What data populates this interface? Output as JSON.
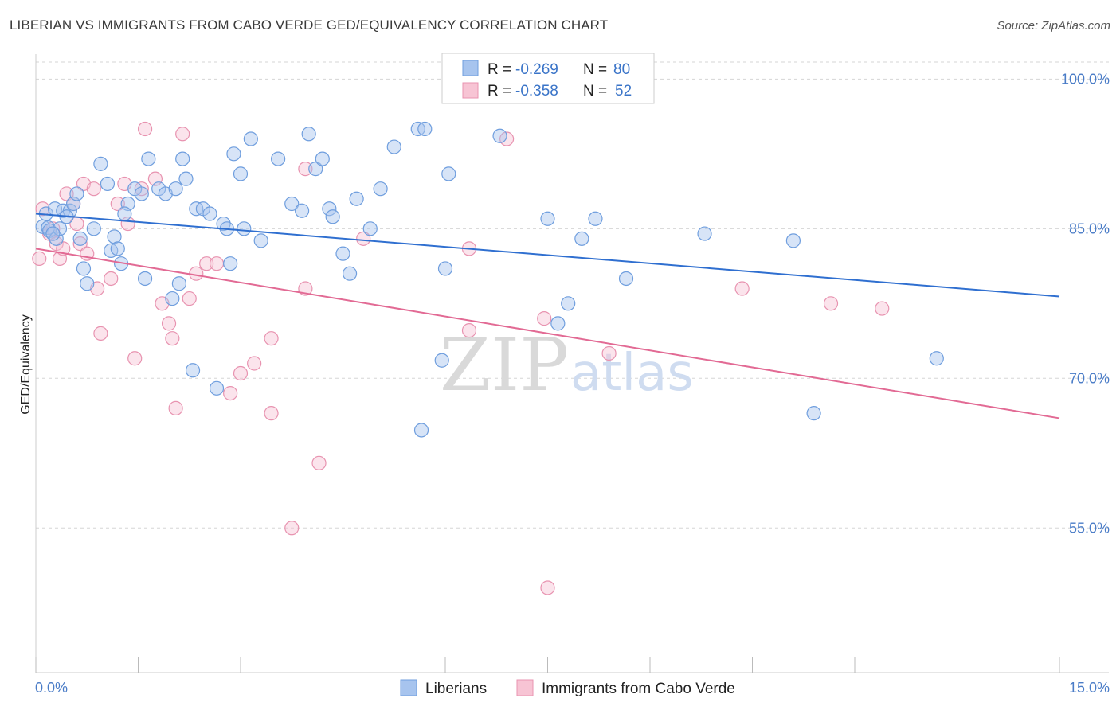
{
  "title": "LIBERIAN VS IMMIGRANTS FROM CABO VERDE GED/EQUIVALENCY CORRELATION CHART",
  "source": "Source: ZipAtlas.com",
  "watermark": {
    "zip": "ZIP",
    "atlas": "atlas"
  },
  "legend_box": {
    "r_label": "R =",
    "n_label": "N =",
    "rows": [
      {
        "r": "-0.269",
        "n": "80",
        "color": "#a7c4ee",
        "stroke": "#6f9ede"
      },
      {
        "r": "-0.358",
        "n": "52",
        "color": "#f7c4d4",
        "stroke": "#e893b0"
      }
    ]
  },
  "colors": {
    "liberians_fill": "#a7c4ee",
    "liberians_stroke": "#6f9ede",
    "liberians_line": "#2f6fd0",
    "cabo_fill": "#f7c4d4",
    "cabo_stroke": "#e893b0",
    "cabo_line": "#e26a94"
  },
  "chart_data": {
    "type": "scatter",
    "title": "LIBERIAN VS IMMIGRANTS FROM CABO VERDE GED/EQUIVALENCY CORRELATION CHART",
    "xlabel": "",
    "ylabel": "GED/Equivalency",
    "xlim": [
      0,
      15
    ],
    "ylim": [
      40.5,
      102.5
    ],
    "x_tick_labels": [
      "0.0%",
      "15.0%"
    ],
    "y_ticks": [
      55,
      70,
      85,
      100
    ],
    "y_tick_labels": [
      "55.0%",
      "70.0%",
      "85.0%",
      "100.0%"
    ],
    "grid": true,
    "legend_placement": "bottom",
    "series": [
      {
        "name": "Liberians",
        "r": -0.269,
        "n": 80,
        "trend": {
          "x": [
            0,
            15
          ],
          "y": [
            86.5,
            78.2
          ]
        },
        "points": [
          [
            0.1,
            85.2
          ],
          [
            0.15,
            86.5
          ],
          [
            0.18,
            85.1
          ],
          [
            0.2,
            84.8
          ],
          [
            0.28,
            87.0
          ],
          [
            0.3,
            84.0
          ],
          [
            0.35,
            85.0
          ],
          [
            0.4,
            86.8
          ],
          [
            0.5,
            86.8
          ],
          [
            0.55,
            87.5
          ],
          [
            0.6,
            88.5
          ],
          [
            0.65,
            84.0
          ],
          [
            0.7,
            81.0
          ],
          [
            0.75,
            79.5
          ],
          [
            0.85,
            85.0
          ],
          [
            0.95,
            91.5
          ],
          [
            1.05,
            89.5
          ],
          [
            1.1,
            82.8
          ],
          [
            1.15,
            84.2
          ],
          [
            1.2,
            83.0
          ],
          [
            1.25,
            81.5
          ],
          [
            1.35,
            87.5
          ],
          [
            1.45,
            89.0
          ],
          [
            1.55,
            88.5
          ],
          [
            1.6,
            80.0
          ],
          [
            1.65,
            92.0
          ],
          [
            1.8,
            89.0
          ],
          [
            1.9,
            88.5
          ],
          [
            2.0,
            78.0
          ],
          [
            2.1,
            79.5
          ],
          [
            2.05,
            89.0
          ],
          [
            2.15,
            92.0
          ],
          [
            2.2,
            90.0
          ],
          [
            2.3,
            70.8
          ],
          [
            2.35,
            87.0
          ],
          [
            2.45,
            87.0
          ],
          [
            2.55,
            86.5
          ],
          [
            2.65,
            69.0
          ],
          [
            2.75,
            85.5
          ],
          [
            2.85,
            81.5
          ],
          [
            2.9,
            92.5
          ],
          [
            3.05,
            85.0
          ],
          [
            3.0,
            90.5
          ],
          [
            3.15,
            94.0
          ],
          [
            3.3,
            83.8
          ],
          [
            3.55,
            92.0
          ],
          [
            3.75,
            87.5
          ],
          [
            3.9,
            86.8
          ],
          [
            4.0,
            94.5
          ],
          [
            4.1,
            91.0
          ],
          [
            4.2,
            92.0
          ],
          [
            4.3,
            87.0
          ],
          [
            4.35,
            86.2
          ],
          [
            4.5,
            82.5
          ],
          [
            4.6,
            80.5
          ],
          [
            4.7,
            88.0
          ],
          [
            4.9,
            85.0
          ],
          [
            5.05,
            89.0
          ],
          [
            5.25,
            93.2
          ],
          [
            5.6,
            95.0
          ],
          [
            5.65,
            64.8
          ],
          [
            5.95,
            71.8
          ],
          [
            6.0,
            81.0
          ],
          [
            6.05,
            90.5
          ],
          [
            6.8,
            94.3
          ],
          [
            7.5,
            86.0
          ],
          [
            7.65,
            75.5
          ],
          [
            7.8,
            77.5
          ],
          [
            8.0,
            84.0
          ],
          [
            8.2,
            86.0
          ],
          [
            8.65,
            80.0
          ],
          [
            9.8,
            84.5
          ],
          [
            11.1,
            83.8
          ],
          [
            11.4,
            66.5
          ],
          [
            13.2,
            72.0
          ],
          [
            1.3,
            86.5
          ],
          [
            2.8,
            85.0
          ],
          [
            0.25,
            84.5
          ],
          [
            0.45,
            86.2
          ],
          [
            5.7,
            95.0
          ]
        ]
      },
      {
        "name": "Immigrants from Cabo Verde",
        "r": -0.358,
        "n": 52,
        "trend": {
          "x": [
            0,
            15
          ],
          "y": [
            83.0,
            66.0
          ]
        },
        "points": [
          [
            0.05,
            82.0
          ],
          [
            0.1,
            87.0
          ],
          [
            0.2,
            84.5
          ],
          [
            0.25,
            85.0
          ],
          [
            0.3,
            83.5
          ],
          [
            0.35,
            82.0
          ],
          [
            0.4,
            83.0
          ],
          [
            0.45,
            88.5
          ],
          [
            0.55,
            87.5
          ],
          [
            0.6,
            85.5
          ],
          [
            0.65,
            83.5
          ],
          [
            0.7,
            89.5
          ],
          [
            0.75,
            82.5
          ],
          [
            0.85,
            89.0
          ],
          [
            0.9,
            79.0
          ],
          [
            0.95,
            74.5
          ],
          [
            1.1,
            80.0
          ],
          [
            1.2,
            87.5
          ],
          [
            1.3,
            89.5
          ],
          [
            1.35,
            85.5
          ],
          [
            1.45,
            72.0
          ],
          [
            1.55,
            89.0
          ],
          [
            1.6,
            95.0
          ],
          [
            1.75,
            90.0
          ],
          [
            1.85,
            77.5
          ],
          [
            1.95,
            75.5
          ],
          [
            2.0,
            74.0
          ],
          [
            2.05,
            67.0
          ],
          [
            2.15,
            94.5
          ],
          [
            2.25,
            78.0
          ],
          [
            2.35,
            80.5
          ],
          [
            2.5,
            81.5
          ],
          [
            2.65,
            81.5
          ],
          [
            2.85,
            68.5
          ],
          [
            3.0,
            70.5
          ],
          [
            3.2,
            71.5
          ],
          [
            3.45,
            74.0
          ],
          [
            3.45,
            66.5
          ],
          [
            3.75,
            55.0
          ],
          [
            3.95,
            79.0
          ],
          [
            3.95,
            91.0
          ],
          [
            4.15,
            61.5
          ],
          [
            4.8,
            84.0
          ],
          [
            6.35,
            74.8
          ],
          [
            6.35,
            83.0
          ],
          [
            6.9,
            94.0
          ],
          [
            7.45,
            76.0
          ],
          [
            7.5,
            49.0
          ],
          [
            8.4,
            72.5
          ],
          [
            10.35,
            79.0
          ],
          [
            11.65,
            77.5
          ],
          [
            12.4,
            77.0
          ]
        ]
      }
    ]
  }
}
